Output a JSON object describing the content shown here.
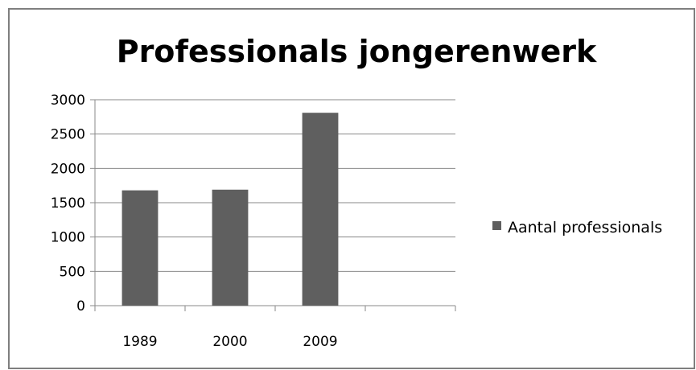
{
  "chart_data": {
    "type": "bar",
    "title": "Professionals jongerenwerk",
    "categories": [
      "1989",
      "2000",
      "2009",
      ""
    ],
    "series": [
      {
        "name": "Aantal professionals",
        "values": [
          1680,
          1690,
          2810,
          null
        ]
      }
    ],
    "xlabel": "",
    "ylabel": "",
    "ylim": [
      0,
      3000
    ],
    "yticks": [
      0,
      500,
      1000,
      1500,
      2000,
      2500,
      3000
    ],
    "grid": "horizontal",
    "legend_position": "right",
    "colors": {
      "bar": "#5f5f5f",
      "grid": "#8a8a8a",
      "frame": "#7f7f7f"
    }
  }
}
